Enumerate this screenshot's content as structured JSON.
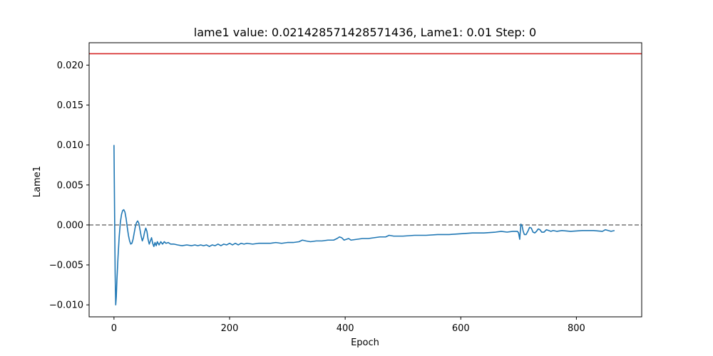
{
  "chart_data": {
    "type": "line",
    "title": "lame1 value: 0.021428571428571436, Lame1: 0.01 Step: 0",
    "xlabel": "Epoch",
    "ylabel": "Lame1",
    "xlim": [
      -43,
      913
    ],
    "ylim": [
      -0.0115,
      0.0228
    ],
    "grid": false,
    "x_ticks": [
      0,
      200,
      400,
      600,
      800
    ],
    "x_tick_labels": [
      "0",
      "200",
      "400",
      "600",
      "800"
    ],
    "y_ticks": [
      -0.01,
      -0.005,
      0.0,
      0.005,
      0.01,
      0.015,
      0.02
    ],
    "y_tick_labels": [
      "−0.010",
      "−0.005",
      "0.000",
      "0.005",
      "0.010",
      "0.015",
      "0.020"
    ],
    "reference_lines": [
      {
        "orientation": "horizontal",
        "y": 0.021428571428571436,
        "color": "#d62728",
        "style": "solid"
      },
      {
        "orientation": "horizontal",
        "y": 0.0,
        "color": "#808080",
        "style": "dashed"
      }
    ],
    "series": [
      {
        "color": "#1f77b4",
        "points": [
          [
            0,
            0.01
          ],
          [
            1,
            0.002
          ],
          [
            2,
            -0.006
          ],
          [
            3,
            -0.01
          ],
          [
            4,
            -0.009
          ],
          [
            5,
            -0.007
          ],
          [
            7,
            -0.004
          ],
          [
            9,
            -0.0015
          ],
          [
            11,
            0.0003
          ],
          [
            13,
            0.0013
          ],
          [
            15,
            0.0018
          ],
          [
            17,
            0.0019
          ],
          [
            19,
            0.0016
          ],
          [
            21,
            0.0008
          ],
          [
            23,
            -0.0003
          ],
          [
            25,
            -0.0013
          ],
          [
            27,
            -0.002
          ],
          [
            29,
            -0.0024
          ],
          [
            31,
            -0.0023
          ],
          [
            33,
            -0.0018
          ],
          [
            35,
            -0.001
          ],
          [
            37,
            -0.0002
          ],
          [
            39,
            0.0003
          ],
          [
            41,
            0.0005
          ],
          [
            43,
            0.0002
          ],
          [
            45,
            -0.0006
          ],
          [
            47,
            -0.0014
          ],
          [
            49,
            -0.002
          ],
          [
            51,
            -0.0016
          ],
          [
            53,
            -0.0009
          ],
          [
            55,
            -0.0004
          ],
          [
            57,
            -0.0008
          ],
          [
            59,
            -0.0018
          ],
          [
            61,
            -0.0024
          ],
          [
            63,
            -0.002
          ],
          [
            65,
            -0.0016
          ],
          [
            67,
            -0.0023
          ],
          [
            69,
            -0.0027
          ],
          [
            71,
            -0.0022
          ],
          [
            73,
            -0.0026
          ],
          [
            75,
            -0.0021
          ],
          [
            78,
            -0.0025
          ],
          [
            81,
            -0.0021
          ],
          [
            84,
            -0.0024
          ],
          [
            87,
            -0.0021
          ],
          [
            90,
            -0.0023
          ],
          [
            94,
            -0.0022
          ],
          [
            98,
            -0.0024
          ],
          [
            104,
            -0.0024
          ],
          [
            110,
            -0.0025
          ],
          [
            118,
            -0.0026
          ],
          [
            126,
            -0.0025
          ],
          [
            134,
            -0.0026
          ],
          [
            140,
            -0.0025
          ],
          [
            145,
            -0.0026
          ],
          [
            150,
            -0.0025
          ],
          [
            155,
            -0.0026
          ],
          [
            160,
            -0.0025
          ],
          [
            165,
            -0.0027
          ],
          [
            170,
            -0.0025
          ],
          [
            175,
            -0.0026
          ],
          [
            180,
            -0.0024
          ],
          [
            185,
            -0.0026
          ],
          [
            190,
            -0.0024
          ],
          [
            195,
            -0.0025
          ],
          [
            200,
            -0.0023
          ],
          [
            205,
            -0.0025
          ],
          [
            210,
            -0.0023
          ],
          [
            215,
            -0.0025
          ],
          [
            220,
            -0.0023
          ],
          [
            225,
            -0.0024
          ],
          [
            230,
            -0.0023
          ],
          [
            240,
            -0.0024
          ],
          [
            250,
            -0.0023
          ],
          [
            260,
            -0.0023
          ],
          [
            270,
            -0.0023
          ],
          [
            280,
            -0.0022
          ],
          [
            290,
            -0.0023
          ],
          [
            300,
            -0.0022
          ],
          [
            310,
            -0.0022
          ],
          [
            320,
            -0.0021
          ],
          [
            326,
            -0.0019
          ],
          [
            332,
            -0.002
          ],
          [
            340,
            -0.0021
          ],
          [
            350,
            -0.002
          ],
          [
            360,
            -0.002
          ],
          [
            370,
            -0.0019
          ],
          [
            380,
            -0.0019
          ],
          [
            386,
            -0.0017
          ],
          [
            390,
            -0.0015
          ],
          [
            394,
            -0.0016
          ],
          [
            398,
            -0.0019
          ],
          [
            402,
            -0.0018
          ],
          [
            406,
            -0.0017
          ],
          [
            410,
            -0.0019
          ],
          [
            420,
            -0.0018
          ],
          [
            430,
            -0.0017
          ],
          [
            440,
            -0.0017
          ],
          [
            450,
            -0.0016
          ],
          [
            460,
            -0.0015
          ],
          [
            470,
            -0.0015
          ],
          [
            476,
            -0.0013
          ],
          [
            484,
            -0.0014
          ],
          [
            500,
            -0.0014
          ],
          [
            520,
            -0.0013
          ],
          [
            540,
            -0.0013
          ],
          [
            560,
            -0.0012
          ],
          [
            580,
            -0.0012
          ],
          [
            600,
            -0.0011
          ],
          [
            620,
            -0.001
          ],
          [
            640,
            -0.001
          ],
          [
            660,
            -0.0009
          ],
          [
            670,
            -0.0008
          ],
          [
            680,
            -0.0009
          ],
          [
            690,
            -0.0008
          ],
          [
            698,
            -0.0008
          ],
          [
            700,
            -0.001
          ],
          [
            702,
            -0.0018
          ],
          [
            703,
            -0.0008
          ],
          [
            704,
            0.0001
          ],
          [
            706,
            -0.0001
          ],
          [
            708,
            -0.0008
          ],
          [
            710,
            -0.0012
          ],
          [
            713,
            -0.0012
          ],
          [
            716,
            -0.0008
          ],
          [
            719,
            -0.0003
          ],
          [
            722,
            -0.0004
          ],
          [
            725,
            -0.0009
          ],
          [
            728,
            -0.001
          ],
          [
            731,
            -0.0008
          ],
          [
            734,
            -0.0005
          ],
          [
            737,
            -0.0006
          ],
          [
            740,
            -0.0009
          ],
          [
            744,
            -0.0009
          ],
          [
            748,
            -0.0006
          ],
          [
            752,
            -0.0007
          ],
          [
            756,
            -0.0008
          ],
          [
            760,
            -0.0007
          ],
          [
            766,
            -0.0008
          ],
          [
            775,
            -0.0007
          ],
          [
            790,
            -0.0008
          ],
          [
            810,
            -0.0007
          ],
          [
            830,
            -0.0007
          ],
          [
            845,
            -0.0008
          ],
          [
            850,
            -0.0006
          ],
          [
            855,
            -0.0007
          ],
          [
            860,
            -0.0008
          ],
          [
            866,
            -0.0007
          ]
        ]
      }
    ]
  }
}
